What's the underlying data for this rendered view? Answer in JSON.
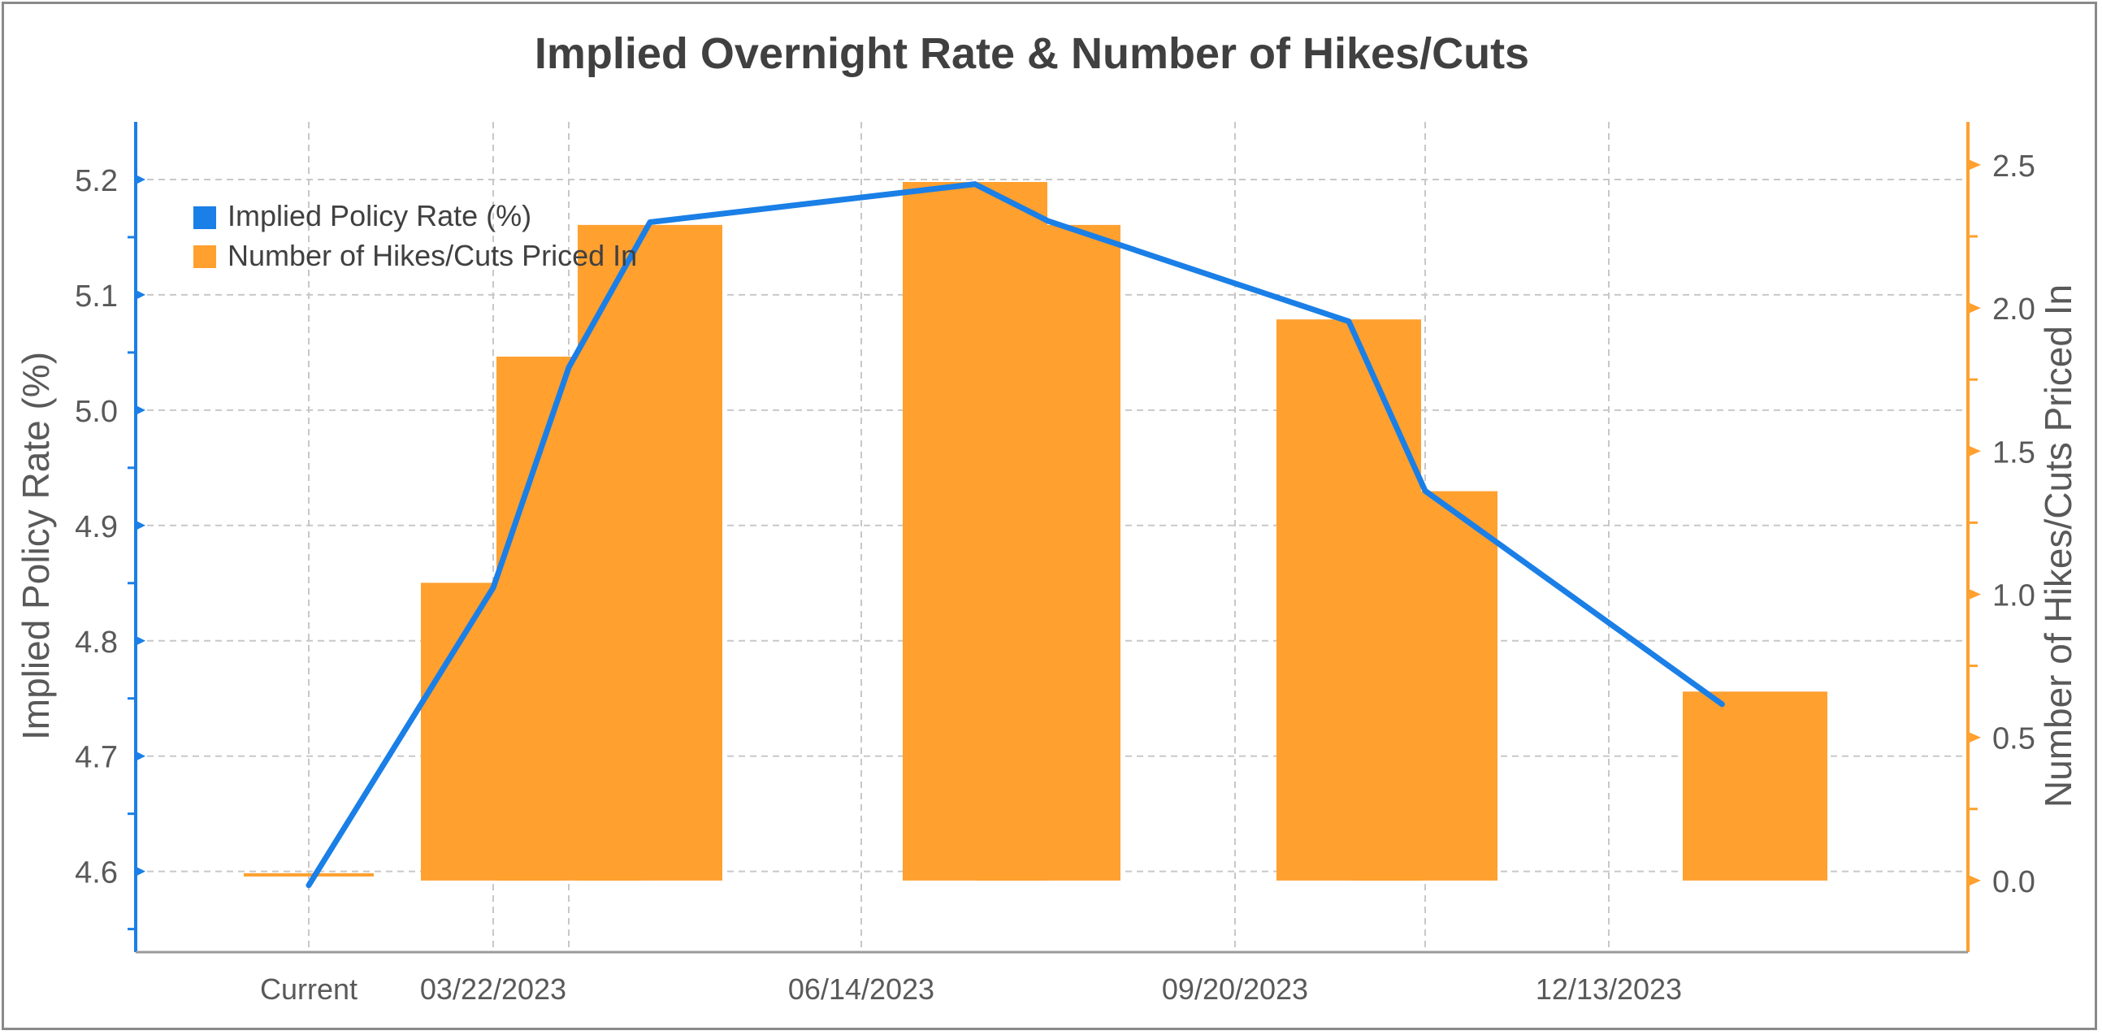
{
  "chart_data": {
    "type": "bar",
    "title": "Implied Overnight Rate & Number of Hikes/Cuts",
    "categories": [
      "Current",
      "",
      "03/22/2023",
      "",
      "",
      "06/14/2023",
      "",
      "",
      "09/20/2023",
      "",
      "",
      "12/13/2023",
      ""
    ],
    "x_tick_labels": [
      "Current",
      "03/22/2023",
      "06/14/2023",
      "09/20/2023",
      "12/13/2023"
    ],
    "y_left": {
      "label": "Implied Policy Rate (%)",
      "lim": [
        4.53,
        5.25
      ],
      "ticks": [
        4.6,
        4.7,
        4.8,
        4.9,
        5.0,
        5.1,
        5.2
      ],
      "tick_labels": [
        "4.6",
        "4.7",
        "4.8",
        "4.9",
        "5.0",
        "5.1",
        "5.2"
      ]
    },
    "y_right": {
      "label": "Number of Hikes/Cuts Priced In",
      "lim": [
        -0.25,
        2.65
      ],
      "ticks": [
        0.0,
        0.5,
        1.0,
        1.5,
        2.0,
        2.5
      ],
      "tick_labels": [
        "0.0",
        "0.5",
        "1.0",
        "1.5",
        "2.0",
        "2.5"
      ]
    },
    "series": [
      {
        "name": "Implied Policy Rate (%)",
        "type": "line",
        "axis": "left",
        "color": "#1a7fe6",
        "x": [
          0,
          1,
          2,
          3,
          4,
          5,
          6,
          7,
          7.9
        ],
        "values": [
          4.588,
          4.846,
          5.037,
          5.163,
          5.196,
          5.164,
          5.077,
          4.93,
          4.745
        ]
      },
      {
        "name": "Number of Hikes/Cuts Priced In",
        "type": "bar",
        "axis": "right",
        "color": "#ffa02f",
        "x": [
          0,
          1,
          2,
          3,
          4,
          5,
          6,
          7,
          8
        ],
        "values": [
          0.02,
          1.04,
          1.83,
          2.29,
          2.44,
          2.29,
          1.96,
          1.36,
          0.66
        ]
      }
    ],
    "legend": {
      "placement": "top-left"
    },
    "grid": true,
    "colors": {
      "line": "#1a7fe6",
      "bars": "#ffa02f",
      "left_axis": "#1a7fe6",
      "right_axis": "#ffa02f",
      "text": "#595959",
      "title": "#404040",
      "grid": "#c8c8c8"
    }
  }
}
